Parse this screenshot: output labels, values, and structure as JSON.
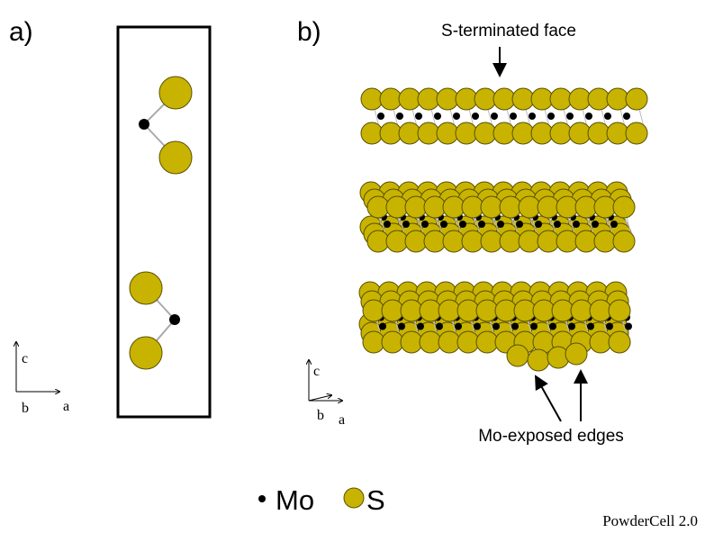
{
  "panels": [
    {
      "label": "a)",
      "axes": [
        "c",
        "b",
        "a"
      ]
    },
    {
      "label": "b)",
      "annotations": [
        "S-terminated face",
        "Mo-exposed edges"
      ],
      "axes": [
        "c",
        "b",
        "a"
      ]
    }
  ],
  "legend": [
    {
      "label": "Mo"
    },
    {
      "label": "S"
    }
  ],
  "footer": "PowderCell 2.0"
}
